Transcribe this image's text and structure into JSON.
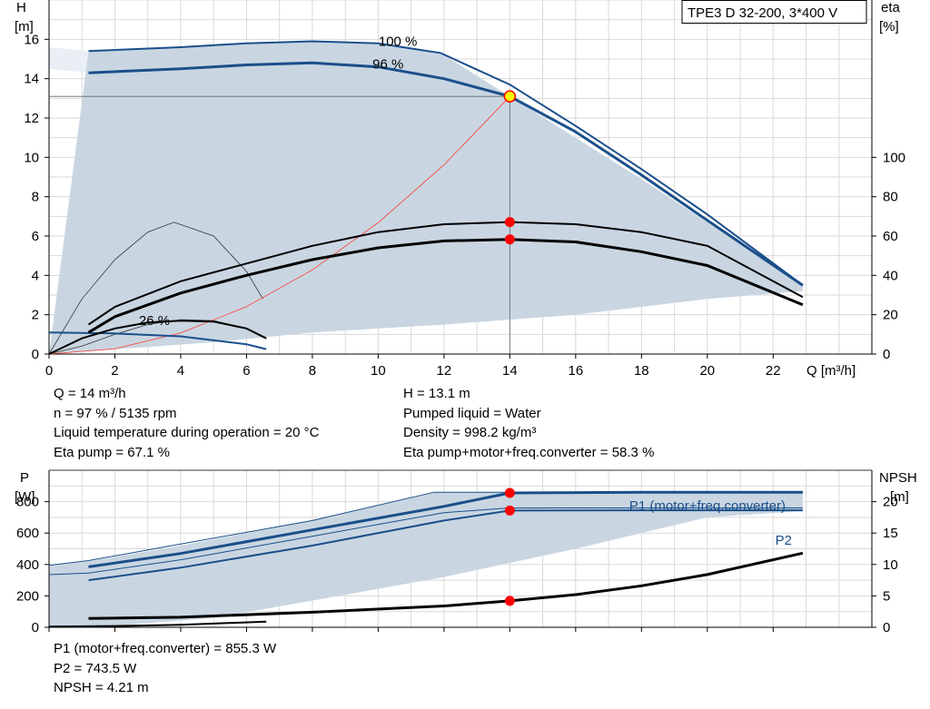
{
  "title_box": "TPE3 D 32-200, 3*400 V",
  "colors": {
    "curve_blue": "#1a4f8a",
    "envelope_fill": "#c9d6e2",
    "envelope_light": "#e9eff5",
    "grid": "#d9d9d9",
    "duty_point": "#ff0000",
    "duty_point_main": "#ffff00",
    "system_curve": "#ff3b30"
  },
  "info_top": {
    "left": [
      "Q = 14 m³/h",
      "n = 97 % / 5135 rpm",
      "Liquid temperature during operation = 20 °C",
      "Eta pump = 67.1 %"
    ],
    "right": [
      "H = 13.1 m",
      "Pumped liquid = Water",
      "Density = 998.2 kg/m³",
      "Eta pump+motor+freq.converter = 58.3 %"
    ]
  },
  "info_bottom": [
    "P1 (motor+freq.converter) = 855.3 W",
    "P2 = 743.5 W",
    "NPSH = 4.21 m"
  ],
  "chart_data": [
    {
      "type": "line",
      "name": "head-efficiency",
      "x_label": "Q [m³/h]",
      "y_left_label": [
        "H",
        "[m]"
      ],
      "y_right_label": [
        "eta",
        "[%]"
      ],
      "xlim": [
        0,
        25
      ],
      "ylim_left": [
        0,
        18
      ],
      "ylim_right": [
        0,
        180
      ],
      "x_ticks": [
        0,
        2,
        4,
        6,
        8,
        10,
        12,
        14,
        16,
        18,
        20,
        22
      ],
      "y_left_ticks": [
        0,
        2,
        4,
        6,
        8,
        10,
        12,
        14,
        16
      ],
      "y_right_ticks": [
        0,
        20,
        40,
        60,
        80,
        100
      ],
      "grid": true,
      "envelope_outer": [
        [
          1.2,
          15.4
        ],
        [
          4,
          15.6
        ],
        [
          8,
          15.9
        ],
        [
          10,
          15.8
        ],
        [
          12,
          15.2
        ],
        [
          14,
          13.1
        ],
        [
          16,
          11.0
        ],
        [
          18,
          8.9
        ],
        [
          20,
          6.7
        ],
        [
          22.9,
          3.5
        ],
        [
          22.9,
          3.2
        ],
        [
          20,
          2.8
        ],
        [
          16,
          2.0
        ],
        [
          12,
          1.5
        ],
        [
          8,
          1.1
        ],
        [
          5,
          0.6
        ],
        [
          0,
          0
        ]
      ],
      "envelope_light": [
        [
          0,
          15.6
        ],
        [
          1.2,
          15.4
        ],
        [
          1.2,
          14.3
        ],
        [
          0,
          14.5
        ],
        [
          0,
          0
        ]
      ],
      "head_curves": [
        {
          "label": "100 %",
          "points": [
            [
              1.2,
              15.4
            ],
            [
              4,
              15.6
            ],
            [
              6,
              15.8
            ],
            [
              8,
              15.9
            ],
            [
              10,
              15.8
            ],
            [
              11.9,
              15.3
            ],
            [
              14,
              13.7
            ],
            [
              16,
              11.6
            ],
            [
              18,
              9.4
            ],
            [
              20,
              7.1
            ],
            [
              22.9,
              3.5
            ]
          ]
        },
        {
          "label": "96 %",
          "points": [
            [
              1.2,
              14.3
            ],
            [
              4,
              14.5
            ],
            [
              6,
              14.7
            ],
            [
              8,
              14.8
            ],
            [
              10,
              14.6
            ],
            [
              12,
              14.0
            ],
            [
              14,
              13.1
            ],
            [
              16,
              11.3
            ],
            [
              18,
              9.1
            ],
            [
              20,
              6.8
            ],
            [
              22.9,
              3.5
            ]
          ]
        },
        {
          "label": "",
          "points": [
            [
              0,
              1.1
            ],
            [
              2,
              1.05
            ],
            [
              4,
              0.9
            ],
            [
              6,
              0.5
            ],
            [
              6.6,
              0.25
            ]
          ]
        }
      ],
      "efficiency_curves": [
        {
          "label": "",
          "points": [
            [
              1.2,
              15
            ],
            [
              2,
              24
            ],
            [
              4,
              37
            ],
            [
              6,
              46
            ],
            [
              8,
              55
            ],
            [
              10,
              62
            ],
            [
              12,
              66
            ],
            [
              14,
              67.1
            ],
            [
              16,
              66
            ],
            [
              18,
              62
            ],
            [
              20,
              55
            ],
            [
              22.9,
              29
            ]
          ]
        },
        {
          "label": "",
          "points": [
            [
              1.2,
              11
            ],
            [
              2,
              19
            ],
            [
              4,
              31
            ],
            [
              6,
              40
            ],
            [
              8,
              48
            ],
            [
              10,
              54
            ],
            [
              12,
              57.5
            ],
            [
              14,
              58.3
            ],
            [
              16,
              57
            ],
            [
              18,
              52
            ],
            [
              20,
              45
            ],
            [
              22.9,
              25
            ]
          ]
        },
        {
          "label": "26 %",
          "points": [
            [
              0,
              0
            ],
            [
              1,
              8
            ],
            [
              2,
              13
            ],
            [
              3,
              16
            ],
            [
              4,
              17
            ],
            [
              5,
              16.5
            ],
            [
              6,
              13
            ],
            [
              6.6,
              8
            ]
          ]
        }
      ],
      "thin_curves": [
        {
          "points": [
            [
              0,
              0
            ],
            [
              1,
              28
            ],
            [
              2,
              48
            ],
            [
              3,
              62
            ],
            [
              3.8,
              67
            ],
            [
              5,
              60
            ],
            [
              6,
              42
            ],
            [
              6.5,
              28
            ]
          ]
        },
        {
          "points": [
            [
              0,
              0
            ],
            [
              1,
              4
            ],
            [
              2,
              10
            ],
            [
              3,
              15
            ],
            [
              4,
              17.5
            ],
            [
              5,
              17
            ],
            [
              6,
              13
            ],
            [
              6.6,
              8
            ]
          ]
        }
      ],
      "system_curve": {
        "points": [
          [
            0,
            0
          ],
          [
            2,
            0.27
          ],
          [
            4,
            1.07
          ],
          [
            6,
            2.41
          ],
          [
            8,
            4.28
          ],
          [
            10,
            6.68
          ],
          [
            12,
            9.62
          ],
          [
            14,
            13.1
          ]
        ]
      },
      "duty_point": {
        "x": 14,
        "H": 13.1,
        "eta_pump": 67.1,
        "eta_total": 58.3
      }
    },
    {
      "type": "line",
      "name": "power-npsh",
      "y_left_label": [
        "P",
        "[W]"
      ],
      "y_right_label": [
        "NPSH",
        "[m]"
      ],
      "xlim": [
        0,
        25
      ],
      "ylim_left": [
        0,
        1000
      ],
      "ylim_right": [
        0,
        25
      ],
      "y_left_ticks": [
        0,
        200,
        400,
        600,
        800
      ],
      "y_right_ticks": [
        0,
        5,
        10,
        15,
        20
      ],
      "grid": true,
      "envelope": [
        [
          0,
          390
        ],
        [
          1.2,
          420
        ],
        [
          4,
          520
        ],
        [
          8,
          680
        ],
        [
          11.7,
          860
        ],
        [
          14,
          860
        ],
        [
          22.9,
          860
        ],
        [
          22.9,
          740
        ],
        [
          20,
          700
        ],
        [
          16,
          500
        ],
        [
          12,
          320
        ],
        [
          8,
          170
        ],
        [
          5,
          60
        ],
        [
          2,
          10
        ],
        [
          0,
          0
        ]
      ],
      "series": [
        {
          "name": "P1 (motor+freq.converter)",
          "points": [
            [
              1.2,
              385
            ],
            [
              4,
              470
            ],
            [
              8,
              620
            ],
            [
              12,
              770
            ],
            [
              14,
              855.3
            ],
            [
              18,
              860
            ],
            [
              22.9,
              860
            ]
          ]
        },
        {
          "name": "P2",
          "points": [
            [
              1.2,
              300
            ],
            [
              4,
              380
            ],
            [
              8,
              520
            ],
            [
              12,
              680
            ],
            [
              14,
              743.5
            ],
            [
              18,
              745
            ],
            [
              22.9,
              745
            ]
          ]
        },
        {
          "name": "",
          "points": [
            [
              0,
              395
            ],
            [
              1.2,
              425
            ],
            [
              4,
              530
            ],
            [
              8,
              680
            ],
            [
              11.7,
              860
            ],
            [
              22.9,
              860
            ]
          ]
        },
        {
          "name": "",
          "points": [
            [
              0,
              335
            ],
            [
              1.2,
              345
            ],
            [
              4,
              430
            ],
            [
              8,
              580
            ],
            [
              12,
              730
            ],
            [
              14,
              760
            ],
            [
              22.9,
              760
            ]
          ]
        }
      ],
      "npsh_curve": {
        "points": [
          [
            1.2,
            1.4
          ],
          [
            4,
            1.6
          ],
          [
            8,
            2.4
          ],
          [
            12,
            3.4
          ],
          [
            14,
            4.21
          ],
          [
            16,
            5.2
          ],
          [
            18,
            6.6
          ],
          [
            20,
            8.4
          ],
          [
            22.9,
            11.8
          ]
        ]
      },
      "npsh_low": {
        "points": [
          [
            0,
            0.1
          ],
          [
            2,
            0.2
          ],
          [
            4,
            0.4
          ],
          [
            6.6,
            0.9
          ]
        ]
      },
      "labels": [
        "P1 (motor+freq.converter)",
        "P2"
      ],
      "duty_point": {
        "x": 14,
        "P1": 855.3,
        "P2": 743.5,
        "NPSH": 4.21
      }
    }
  ]
}
